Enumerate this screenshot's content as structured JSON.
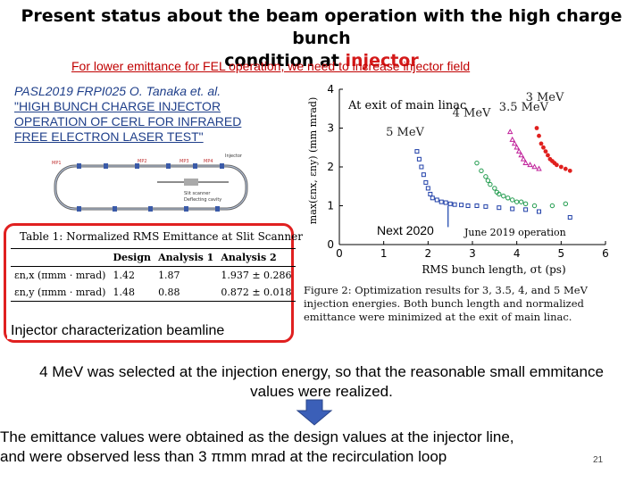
{
  "title": {
    "line1": "Present status about the beam operation with the high charge bunch",
    "line2_prefix": "condition at ",
    "line2_highlight": "injector"
  },
  "subtitle": "For lower emittance for FEL operation, we need to increase injector field",
  "reference": {
    "line1": "PASL2019 FRPI025  O. Tanaka et. al.",
    "line2": "\"HIGH BUNCH CHARGE INJECTOR",
    "line3": "OPERATION OF CERL FOR INFRARED",
    "line4": "FREE ELECTRON LASER TEST\""
  },
  "beamline_diagram": {
    "labels": [
      "MP1",
      "MP2",
      "MP3",
      "MP4",
      "Injector",
      "Slit scanner",
      "Deflecting cavity"
    ]
  },
  "table": {
    "title": "Table 1: Normalized RMS Emittance at Slit Scanner",
    "headers": [
      "",
      "Design",
      "Analysis 1",
      "Analysis 2"
    ],
    "rows": [
      {
        "label": "εn,x (πmm · mrad)",
        "design": "1.42",
        "a1": "1.87",
        "a2": "1.937 ± 0.286"
      },
      {
        "label": "εn,y (πmm · mrad)",
        "design": "1.48",
        "a1": "0.88",
        "a2": "0.872 ± 0.018"
      }
    ]
  },
  "beamline_label": "Injector characterization beamline",
  "next_label": "Next 2020",
  "chart_data": {
    "type": "scatter",
    "annotation": "At exit of main linac",
    "annotation2": "June 2019 operation",
    "xlabel": "RMS bunch length, σt (ps)",
    "ylabel": "max(εnx, εny) (mm mrad)",
    "xlim": [
      0,
      6
    ],
    "ylim": [
      0,
      4
    ],
    "xticks": [
      0,
      1,
      2,
      3,
      4,
      5,
      6
    ],
    "yticks": [
      0,
      1,
      2,
      3,
      4
    ],
    "grid": false,
    "series": [
      {
        "name": "3 MeV",
        "color": "#e0201e",
        "marker": "dot",
        "x": [
          4.45,
          4.5,
          4.55,
          4.6,
          4.65,
          4.7,
          4.75,
          4.8,
          4.85,
          4.9,
          5.0,
          5.1,
          5.2
        ],
        "y": [
          3.0,
          2.8,
          2.6,
          2.5,
          2.4,
          2.3,
          2.2,
          2.15,
          2.1,
          2.05,
          2.0,
          1.95,
          1.9
        ]
      },
      {
        "name": "3.5 MeV",
        "color": "#c0209a",
        "marker": "triangle",
        "x": [
          3.85,
          3.9,
          3.95,
          4.0,
          4.05,
          4.1,
          4.15,
          4.2,
          4.3,
          4.4,
          4.5
        ],
        "y": [
          2.9,
          2.7,
          2.6,
          2.5,
          2.4,
          2.3,
          2.2,
          2.1,
          2.05,
          2.0,
          1.95
        ]
      },
      {
        "name": "4 MeV",
        "color": "#1f9a4c",
        "marker": "circle",
        "x": [
          3.1,
          3.2,
          3.3,
          3.35,
          3.4,
          3.5,
          3.55,
          3.6,
          3.7,
          3.8,
          3.9,
          4.0,
          4.1,
          4.2,
          4.4,
          4.8,
          5.1
        ],
        "y": [
          2.1,
          1.9,
          1.75,
          1.65,
          1.55,
          1.45,
          1.35,
          1.3,
          1.25,
          1.2,
          1.15,
          1.1,
          1.1,
          1.05,
          1.0,
          1.0,
          1.05
        ]
      },
      {
        "name": "5 MeV",
        "color": "#1f3fa8",
        "marker": "square",
        "x": [
          1.75,
          1.8,
          1.85,
          1.9,
          1.95,
          2.0,
          2.05,
          2.1,
          2.2,
          2.3,
          2.4,
          2.5,
          2.6,
          2.75,
          2.9,
          3.1,
          3.3,
          3.6,
          3.9,
          4.2,
          4.5,
          5.2
        ],
        "y": [
          2.4,
          2.2,
          2.0,
          1.8,
          1.6,
          1.45,
          1.3,
          1.2,
          1.15,
          1.1,
          1.08,
          1.05,
          1.03,
          1.02,
          1.0,
          1.0,
          0.98,
          0.95,
          0.92,
          0.9,
          0.85,
          0.7
        ]
      }
    ]
  },
  "figure_caption": "Figure 2: Optimization results for 3, 3.5, 4, and 5 MeV injection energies. Both bunch length and normalized emittance were minimized at the exit of main linac.",
  "paragraph1": "4 MeV was selected at the injection energy, so that the reasonable small emmitance values were realized.",
  "paragraph2_line1": "The emittance values were obtained as the design values at the injector line,",
  "paragraph2_line2": "and  were observed less than 3 πmm mrad at the recirculation loop",
  "page_number": "21",
  "colors": {
    "title_highlight": "#d41a1a",
    "subtitle": "#c00000",
    "reference": "#1f3f8a",
    "box": "#e02020",
    "arrow": "#3b5fb8"
  }
}
